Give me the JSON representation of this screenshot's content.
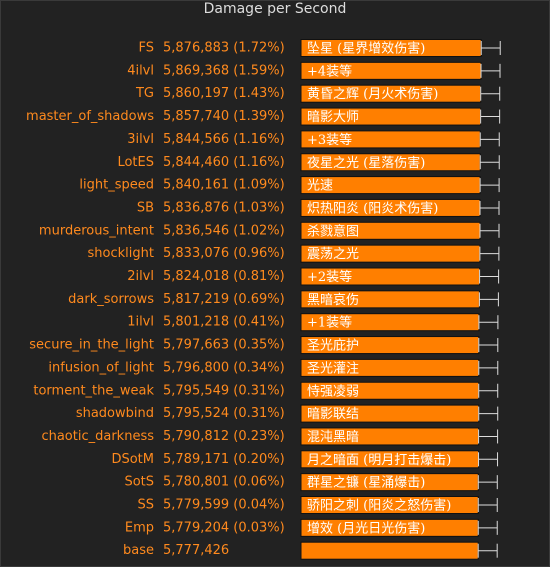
{
  "chart_data": {
    "type": "bar",
    "orientation": "horizontal",
    "title": "Damage per Second",
    "categories": [
      "FS",
      "4ilvl",
      "TG",
      "master_of_shadows",
      "3ilvl",
      "LotES",
      "light_speed",
      "SB",
      "murderous_intent",
      "shocklight",
      "2ilvl",
      "dark_sorrows",
      "1ilvl",
      "secure_in_the_light",
      "infusion_of_light",
      "torment_the_weak",
      "shadowbind",
      "chaotic_darkness",
      "DSotM",
      "SotS",
      "SS",
      "Emp",
      "base"
    ],
    "values": [
      5876883,
      5869368,
      5860197,
      5857740,
      5844566,
      5844460,
      5840161,
      5836876,
      5836546,
      5833076,
      5824018,
      5817219,
      5801218,
      5797663,
      5796800,
      5795549,
      5795524,
      5790812,
      5789171,
      5780801,
      5779599,
      5779204,
      5777426
    ],
    "value_labels": [
      "5,876,883 (1.72%)",
      "5,869,368 (1.59%)",
      "5,860,197 (1.43%)",
      "5,857,740 (1.39%)",
      "5,844,566 (1.16%)",
      "5,844,460 (1.16%)",
      "5,840,161 (1.09%)",
      "5,836,876 (1.03%)",
      "5,836,546 (1.02%)",
      "5,833,076 (0.96%)",
      "5,824,018 (0.81%)",
      "5,817,219 (0.69%)",
      "5,801,218 (0.41%)",
      "5,797,663 (0.35%)",
      "5,796,800 (0.34%)",
      "5,795,549 (0.31%)",
      "5,795,524 (0.31%)",
      "5,790,812 (0.23%)",
      "5,789,171 (0.20%)",
      "5,780,801 (0.06%)",
      "5,779,599 (0.04%)",
      "5,779,204 (0.03%)",
      "5,777,426"
    ],
    "bar_labels": [
      "坠星 (星界增效伤害)",
      "+4装等",
      "黄昏之辉 (月火术伤害)",
      "暗影大师",
      "+3装等",
      "夜星之光 (星落伤害)",
      "光速",
      "炽热阳炎 (阳炎术伤害)",
      "杀戮意图",
      "震荡之光",
      "+2装等",
      "黑暗哀伤",
      "+1装等",
      "圣光庇护",
      "圣光灌注",
      "恃强凌弱",
      "暗影联结",
      "混沌黑暗",
      "月之暗面 (明月打击爆击)",
      "群星之镰 (星涌爆击)",
      "骄阳之刺 (阳炎之怒伤害)",
      "增效 (月光日光伤害)",
      null
    ],
    "color": "#ff7f00",
    "xlim": [
      0,
      6000000
    ]
  }
}
